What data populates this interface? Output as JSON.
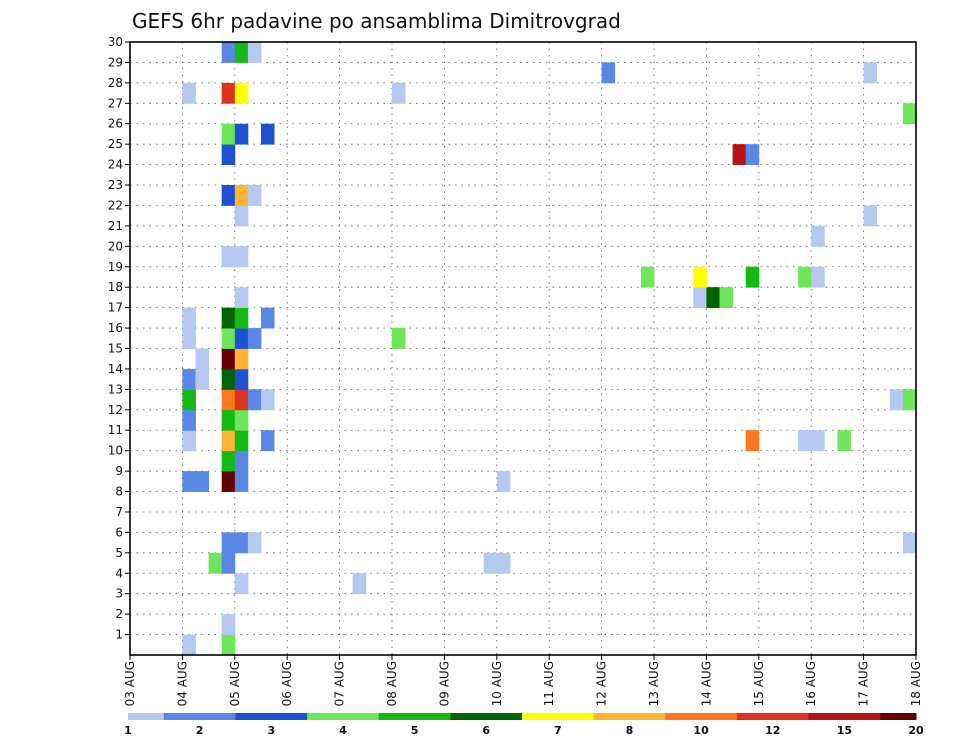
{
  "chart_data": {
    "type": "heatmap",
    "title": "GEFS 6hr padavine po ansamblima Dimitrovgrad",
    "x_tick_labels": [
      "03 AUG",
      "04 AUG",
      "05 AUG",
      "06 AUG",
      "07 AUG",
      "08 AUG",
      "09 AUG",
      "10 AUG",
      "11 AUG",
      "12 AUG",
      "13 AUG",
      "14 AUG",
      "15 AUG",
      "16 AUG",
      "17 AUG",
      "18 AUG"
    ],
    "x_range_steps": [
      0,
      60
    ],
    "steps_per_day": 4,
    "y_tick_labels": [
      "1",
      "2",
      "3",
      "4",
      "5",
      "6",
      "7",
      "8",
      "9",
      "10",
      "11",
      "12",
      "13",
      "14",
      "15",
      "16",
      "17",
      "18",
      "19",
      "20",
      "21",
      "22",
      "23",
      "24",
      "25",
      "26",
      "27",
      "28",
      "29",
      "30"
    ],
    "y_range": [
      0,
      30
    ],
    "grid": true,
    "legend": {
      "placement": "bottom",
      "labels": [
        "1",
        "2",
        "3",
        "4",
        "5",
        "6",
        "7",
        "8",
        "10",
        "12",
        "15",
        "20"
      ],
      "colors": [
        "#b4c8f0",
        "#5a87e6",
        "#1e50d2",
        "#6ee65a",
        "#14b914",
        "#006400",
        "#ffff00",
        "#ffb432",
        "#ff781e",
        "#dc321e",
        "#b41414",
        "#640000"
      ]
    },
    "cells": [
      {
        "member": 0,
        "step": 4,
        "level": 1
      },
      {
        "member": 0,
        "step": 7,
        "level": 4
      },
      {
        "member": 1,
        "step": 7,
        "level": 1
      },
      {
        "member": 3,
        "step": 8,
        "level": 1
      },
      {
        "member": 3,
        "step": 17,
        "level": 1
      },
      {
        "member": 4,
        "step": 6,
        "level": 4
      },
      {
        "member": 4,
        "step": 7,
        "level": 2
      },
      {
        "member": 4,
        "step": 27,
        "level": 1
      },
      {
        "member": 4,
        "step": 28,
        "level": 1
      },
      {
        "member": 5,
        "step": 7,
        "level": 2
      },
      {
        "member": 5,
        "step": 8,
        "level": 2
      },
      {
        "member": 5,
        "step": 9,
        "level": 1
      },
      {
        "member": 5,
        "step": 59,
        "level": 1
      },
      {
        "member": 8,
        "step": 4,
        "level": 2
      },
      {
        "member": 8,
        "step": 5,
        "level": 2
      },
      {
        "member": 8,
        "step": 7,
        "level": 12
      },
      {
        "member": 8,
        "step": 8,
        "level": 2
      },
      {
        "member": 8,
        "step": 28,
        "level": 1
      },
      {
        "member": 9,
        "step": 7,
        "level": 5
      },
      {
        "member": 9,
        "step": 8,
        "level": 2
      },
      {
        "member": 10,
        "step": 4,
        "level": 1
      },
      {
        "member": 10,
        "step": 7,
        "level": 8
      },
      {
        "member": 10,
        "step": 8,
        "level": 5
      },
      {
        "member": 10,
        "step": 10,
        "level": 2
      },
      {
        "member": 10,
        "step": 47,
        "level": 9
      },
      {
        "member": 10,
        "step": 51,
        "level": 1
      },
      {
        "member": 10,
        "step": 52,
        "level": 1
      },
      {
        "member": 10,
        "step": 54,
        "level": 4
      },
      {
        "member": 11,
        "step": 4,
        "level": 2
      },
      {
        "member": 11,
        "step": 7,
        "level": 5
      },
      {
        "member": 11,
        "step": 8,
        "level": 4
      },
      {
        "member": 12,
        "step": 4,
        "level": 5
      },
      {
        "member": 12,
        "step": 7,
        "level": 9
      },
      {
        "member": 12,
        "step": 8,
        "level": 10
      },
      {
        "member": 12,
        "step": 9,
        "level": 2
      },
      {
        "member": 12,
        "step": 10,
        "level": 1
      },
      {
        "member": 12,
        "step": 58,
        "level": 1
      },
      {
        "member": 12,
        "step": 59,
        "level": 4
      },
      {
        "member": 13,
        "step": 4,
        "level": 2
      },
      {
        "member": 13,
        "step": 5,
        "level": 1
      },
      {
        "member": 13,
        "step": 7,
        "level": 6
      },
      {
        "member": 13,
        "step": 8,
        "level": 3
      },
      {
        "member": 14,
        "step": 5,
        "level": 1
      },
      {
        "member": 14,
        "step": 7,
        "level": 12
      },
      {
        "member": 14,
        "step": 8,
        "level": 8
      },
      {
        "member": 15,
        "step": 4,
        "level": 1
      },
      {
        "member": 15,
        "step": 7,
        "level": 4
      },
      {
        "member": 15,
        "step": 8,
        "level": 3
      },
      {
        "member": 15,
        "step": 9,
        "level": 2
      },
      {
        "member": 15,
        "step": 20,
        "level": 4
      },
      {
        "member": 16,
        "step": 4,
        "level": 1
      },
      {
        "member": 16,
        "step": 7,
        "level": 6
      },
      {
        "member": 16,
        "step": 8,
        "level": 5
      },
      {
        "member": 16,
        "step": 10,
        "level": 2
      },
      {
        "member": 17,
        "step": 8,
        "level": 1
      },
      {
        "member": 17,
        "step": 43,
        "level": 1
      },
      {
        "member": 17,
        "step": 44,
        "level": 6
      },
      {
        "member": 17,
        "step": 45,
        "level": 4
      },
      {
        "member": 18,
        "step": 39,
        "level": 4
      },
      {
        "member": 18,
        "step": 43,
        "level": 7
      },
      {
        "member": 18,
        "step": 47,
        "level": 5
      },
      {
        "member": 18,
        "step": 51,
        "level": 4
      },
      {
        "member": 18,
        "step": 52,
        "level": 1
      },
      {
        "member": 19,
        "step": 7,
        "level": 1
      },
      {
        "member": 19,
        "step": 8,
        "level": 1
      },
      {
        "member": 20,
        "step": 52,
        "level": 1
      },
      {
        "member": 21,
        "step": 8,
        "level": 1
      },
      {
        "member": 21,
        "step": 56,
        "level": 1
      },
      {
        "member": 22,
        "step": 7,
        "level": 3
      },
      {
        "member": 22,
        "step": 8,
        "level": 8
      },
      {
        "member": 22,
        "step": 9,
        "level": 1
      },
      {
        "member": 24,
        "step": 7,
        "level": 3
      },
      {
        "member": 24,
        "step": 46,
        "level": 11
      },
      {
        "member": 24,
        "step": 47,
        "level": 2
      },
      {
        "member": 25,
        "step": 7,
        "level": 4
      },
      {
        "member": 25,
        "step": 8,
        "level": 3
      },
      {
        "member": 25,
        "step": 10,
        "level": 3
      },
      {
        "member": 26,
        "step": 59,
        "level": 4
      },
      {
        "member": 27,
        "step": 4,
        "level": 1
      },
      {
        "member": 27,
        "step": 7,
        "level": 10
      },
      {
        "member": 27,
        "step": 8,
        "level": 7
      },
      {
        "member": 27,
        "step": 20,
        "level": 1
      },
      {
        "member": 28,
        "step": 36,
        "level": 2
      },
      {
        "member": 28,
        "step": 56,
        "level": 1
      },
      {
        "member": 29,
        "step": 7,
        "level": 2
      },
      {
        "member": 29,
        "step": 8,
        "level": 5
      },
      {
        "member": 29,
        "step": 9,
        "level": 1
      }
    ]
  }
}
